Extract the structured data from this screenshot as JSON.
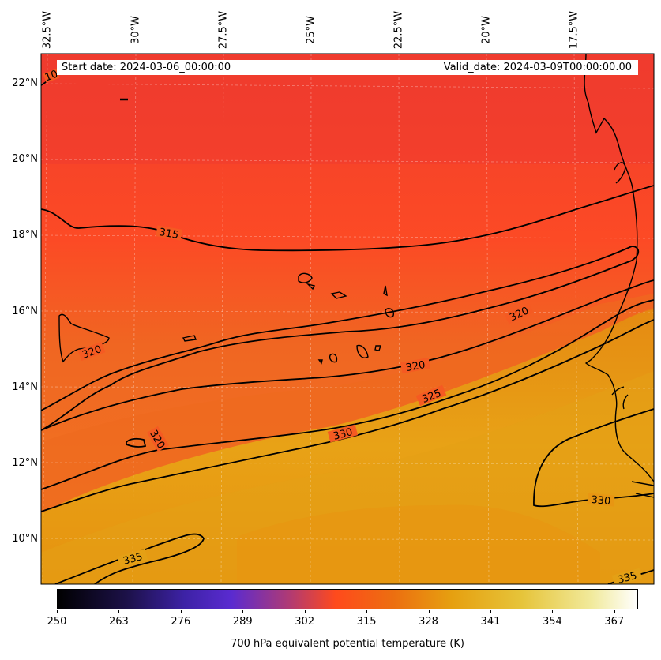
{
  "header": {
    "start_date": "Start date: 2024-03-06_00:00:00",
    "valid_date": "Valid_date: 2024-03-09T00:00:00.00"
  },
  "axes": {
    "lon_labels": [
      "32.5°W",
      "30°W",
      "27.5°W",
      "25°W",
      "22.5°W",
      "20°W",
      "17.5°W"
    ],
    "lat_labels": [
      "22°N",
      "20°N",
      "18°N",
      "16°N",
      "14°N",
      "12°N",
      "10°N"
    ]
  },
  "contour_labels": [
    "10",
    "315",
    "320",
    "320",
    "320",
    "320",
    "325",
    "330",
    "330",
    "335",
    "335"
  ],
  "colorbar": {
    "title": "700 hPa equivalent potential temperature (K)",
    "ticks": [
      "250",
      "263",
      "276",
      "289",
      "302",
      "315",
      "328",
      "341",
      "354",
      "367"
    ],
    "range": [
      250,
      372
    ],
    "colormap": [
      "#000000",
      "#2a1460",
      "#4a27c0",
      "#a0368a",
      "#e2413f",
      "#ff4a1c",
      "#ea8a05",
      "#e6b218",
      "#f0e48c",
      "#ffffff"
    ]
  },
  "colors": {
    "cold_region": "#f23c2c",
    "mid_region": "#fa5a22",
    "warm_region": "#e59214",
    "contour": "#000000"
  }
}
